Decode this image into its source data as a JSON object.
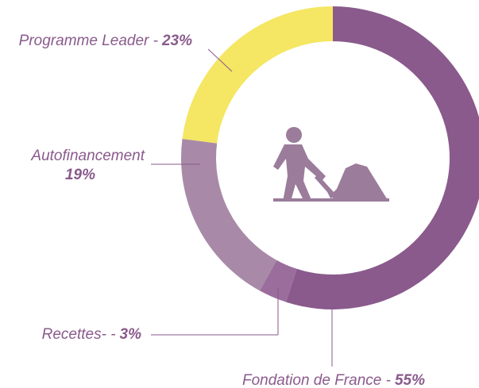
{
  "chart_data": {
    "type": "donut",
    "categories": [
      "Fondation de France -",
      "Recettes- -",
      "Autofinancement",
      "Programme Leader -"
    ],
    "values": [
      55,
      3,
      19,
      23
    ],
    "value_labels": [
      "55%",
      "3%",
      "19%",
      "23%"
    ],
    "colors": [
      "#8a5a8c",
      "#9b6d9c",
      "#a88aa8",
      "#f5e663"
    ]
  }
}
